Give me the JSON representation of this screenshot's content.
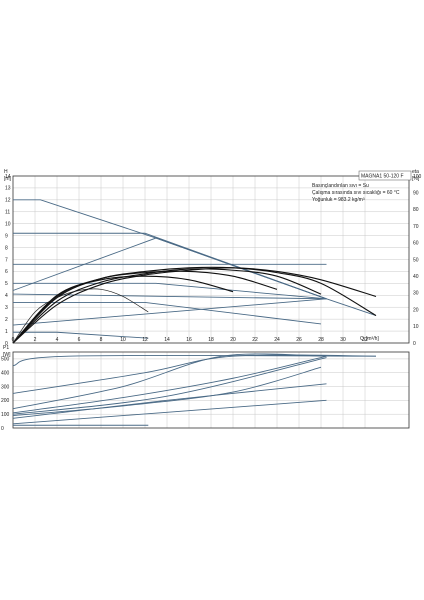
{
  "chart_data": [
    {
      "type": "line",
      "panel": "head-flow",
      "xlabel": "Q",
      "x_unit": "[m³/h]",
      "ylabel": "H",
      "y_unit": "[m]",
      "y2label": "eta",
      "y2_unit": "[%]",
      "xlim": [
        0,
        36
      ],
      "ylim": [
        0,
        14
      ],
      "y2lim": [
        0,
        100
      ],
      "x_ticks": [
        0,
        2,
        4,
        6,
        8,
        10,
        12,
        14,
        16,
        18,
        20,
        22,
        24,
        26,
        28,
        30,
        32
      ],
      "y_ticks": [
        0,
        1,
        2,
        3,
        4,
        5,
        6,
        7,
        8,
        9,
        10,
        11,
        12,
        13,
        14
      ],
      "y2_ticks": [
        0,
        10,
        20,
        30,
        40,
        50,
        60,
        70,
        80,
        90,
        100
      ],
      "grid": true,
      "model_label": "MAGNA1 50-120 F",
      "info_lines": [
        "Basınçlandırılan sıvı = Su",
        "Çalışma sırasında sıvı sıcaklığı = 60 °C",
        "Yoğunluk = 983.2 kg/m³"
      ],
      "colors": {
        "pump_curves": "#4a6a86",
        "efficiency_curves": "#111111"
      },
      "series": [
        {
          "role": "pump-curve",
          "x": [
            0,
            2.5,
            13,
            28.5,
            33
          ],
          "y": [
            12,
            12,
            8.8,
            3.7,
            2.3
          ]
        },
        {
          "role": "pump-curve",
          "x": [
            0,
            12,
            28.5
          ],
          "y": [
            9.2,
            9.2,
            3.7
          ]
        },
        {
          "role": "pump-curve",
          "x": [
            0,
            28.5
          ],
          "y": [
            6.6,
            6.6
          ]
        },
        {
          "role": "pump-curve",
          "x": [
            0,
            13,
            28.5
          ],
          "y": [
            5,
            5,
            3.7
          ]
        },
        {
          "role": "pump-curve",
          "x": [
            0,
            28.5
          ],
          "y": [
            4.1,
            3.7
          ]
        },
        {
          "role": "pump-curve",
          "x": [
            0,
            12,
            28
          ],
          "y": [
            3.4,
            3.4,
            1.6
          ]
        },
        {
          "role": "pump-curve",
          "x": [
            0,
            13,
            28.5
          ],
          "y": [
            4.4,
            8.8,
            3.7
          ]
        },
        {
          "role": "pump-curve",
          "x": [
            0,
            28.5
          ],
          "y": [
            1.5,
            3.7
          ]
        },
        {
          "role": "pump-curve",
          "x": [
            0,
            4,
            12.3
          ],
          "y": [
            0.9,
            0.9,
            0.4
          ]
        },
        {
          "role": "efficiency-curve",
          "x": [
            0,
            4,
            8,
            12,
            16,
            20,
            24,
            28,
            33
          ],
          "y": [
            0,
            3.2,
            4.9,
            5.7,
            6.1,
            6.3,
            6.0,
            5.3,
            3.9
          ]
        },
        {
          "role": "efficiency-curve",
          "x": [
            0,
            4,
            8,
            12,
            16,
            20,
            24,
            28,
            33
          ],
          "y": [
            0,
            3.8,
            5.4,
            6.0,
            6.3,
            6.3,
            5.9,
            5.0,
            2.3
          ]
        },
        {
          "role": "efficiency-curve",
          "x": [
            0,
            4,
            8,
            12,
            16,
            20,
            24,
            28
          ],
          "y": [
            0,
            3.5,
            5.1,
            5.8,
            6.2,
            6.1,
            5.6,
            4.1
          ]
        },
        {
          "role": "efficiency-curve",
          "x": [
            0,
            4,
            8,
            12,
            16,
            20,
            24
          ],
          "y": [
            0,
            3.9,
            5.4,
            5.9,
            6.0,
            5.6,
            4.5
          ]
        },
        {
          "role": "efficiency-curve",
          "x": [
            0,
            4,
            8,
            12,
            16,
            20
          ],
          "y": [
            0,
            4.0,
            5.3,
            5.6,
            5.3,
            4.3
          ]
        },
        {
          "role": "efficiency-curve",
          "x": [
            0,
            2,
            4,
            6,
            8,
            10,
            12.3
          ],
          "y": [
            0,
            2.6,
            3.8,
            4.4,
            4.5,
            3.9,
            2.6
          ]
        }
      ]
    },
    {
      "type": "line",
      "panel": "power-flow",
      "ylabel": "P1",
      "y_unit": "[W]",
      "xlim": [
        0,
        36
      ],
      "ylim": [
        0,
        550
      ],
      "y_ticks": [
        0,
        100,
        200,
        300,
        400,
        500
      ],
      "grid": true,
      "colors": {
        "power_curves": "#4a6a86"
      },
      "series": [
        {
          "x": [
            0,
            5,
            33
          ],
          "y": [
            450,
            520,
            520
          ]
        },
        {
          "x": [
            0,
            12,
            20,
            33
          ],
          "y": [
            250,
            400,
            520,
            520
          ]
        },
        {
          "x": [
            0,
            10,
            19,
            28.5
          ],
          "y": [
            140,
            300,
            520,
            520
          ]
        },
        {
          "x": [
            0,
            10,
            20,
            28.5
          ],
          "y": [
            110,
            220,
            360,
            520
          ]
        },
        {
          "x": [
            0,
            14,
            28.5
          ],
          "y": [
            100,
            230,
            510
          ]
        },
        {
          "x": [
            0,
            10,
            20,
            28
          ],
          "y": [
            90,
            160,
            260,
            440
          ]
        },
        {
          "x": [
            0,
            14,
            28.5
          ],
          "y": [
            70,
            200,
            320
          ]
        },
        {
          "x": [
            0,
            28.5
          ],
          "y": [
            30,
            200
          ]
        },
        {
          "x": [
            0,
            12.3
          ],
          "y": [
            20,
            20
          ]
        }
      ]
    }
  ]
}
